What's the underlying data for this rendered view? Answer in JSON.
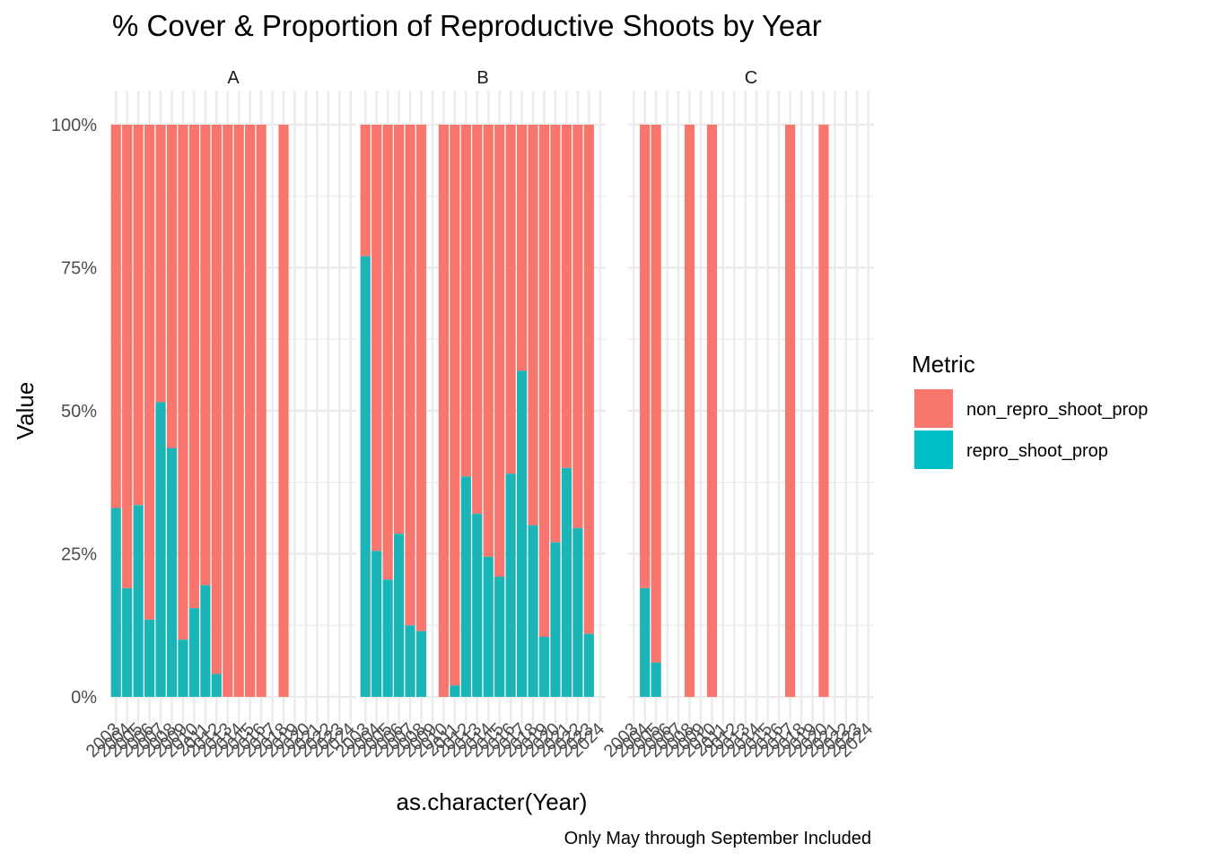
{
  "chart_data": {
    "type": "bar",
    "stacked": true,
    "title": "% Cover & Proportion of Reproductive Shoots by Year",
    "xlabel": "as.character(Year)",
    "ylabel": "Value",
    "caption": "Only May through September Included",
    "ylim": [
      0,
      1
    ],
    "y_ticks": [
      "0%",
      "25%",
      "50%",
      "75%",
      "100%"
    ],
    "y_tick_values": [
      0,
      0.25,
      0.5,
      0.75,
      1
    ],
    "categories": [
      "2003",
      "2004",
      "2005",
      "2006",
      "2007",
      "2008",
      "2009",
      "2010",
      "2011",
      "2012",
      "2013",
      "2014",
      "2015",
      "2016",
      "2017",
      "2018",
      "2019",
      "2020",
      "2021",
      "2022",
      "2023",
      "2024"
    ],
    "x_tick_labels": [
      "2003",
      "2004",
      "2005",
      "2006",
      "2007",
      "2008",
      "2009",
      "2010",
      "2011",
      "2012",
      "2013",
      "2014",
      "2015",
      "2016",
      "2017",
      "2018",
      "2019",
      "2020",
      "2021",
      "2022",
      "2023",
      "2024"
    ],
    "grid": true,
    "legend": {
      "title": "Metric",
      "position": "right",
      "entries": [
        {
          "name": "non_repro_shoot_prop",
          "color": "#F8766D"
        },
        {
          "name": "repro_shoot_prop",
          "color": "#00BFC4"
        }
      ]
    },
    "colors": {
      "non_repro_shoot_prop": "#F8766D",
      "repro_shoot_prop": "#1CB5B7"
    },
    "panels": [
      {
        "name": "A",
        "repro_shoot_prop": [
          0.33,
          0.19,
          0.335,
          0.135,
          0.515,
          0.435,
          0.1,
          0.155,
          0.195,
          0.04,
          0,
          0,
          0,
          0,
          null,
          0,
          null,
          null,
          null,
          null,
          null,
          null
        ]
      },
      {
        "name": "B",
        "repro_shoot_prop": [
          0.77,
          0.255,
          0.205,
          0.285,
          0.125,
          0.115,
          null,
          0,
          0.02,
          0.385,
          0.32,
          0.245,
          0.21,
          0.39,
          0.57,
          0.3,
          0.105,
          0.27,
          0.4,
          0.295,
          0.11,
          null
        ]
      },
      {
        "name": "C",
        "repro_shoot_prop": [
          null,
          0.19,
          0.06,
          null,
          null,
          0,
          null,
          0,
          null,
          null,
          null,
          null,
          null,
          null,
          0,
          null,
          null,
          0,
          null,
          null,
          null,
          null
        ]
      }
    ]
  }
}
